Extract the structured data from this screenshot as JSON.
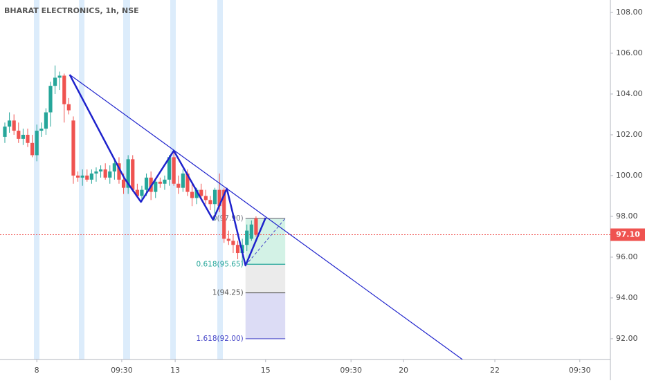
{
  "chart_data": {
    "type": "candlestick",
    "title": "BHARAT ELECTRONICS, 1h, NSE",
    "up_color": "#26a69a",
    "down_color": "#ef5350",
    "x": [
      0,
      1,
      2,
      3,
      4,
      5,
      6,
      7,
      8,
      9,
      10,
      11,
      12,
      13,
      14,
      15,
      16,
      17,
      18,
      19,
      20,
      21,
      22,
      23,
      24,
      25,
      26,
      27,
      28,
      29,
      30,
      31,
      32,
      33,
      34,
      35,
      36,
      37,
      38,
      39,
      40,
      41,
      42,
      43,
      44,
      45,
      46,
      47,
      48,
      49,
      50,
      51,
      52,
      53,
      54,
      55
    ],
    "open": [
      101.9,
      102.4,
      102.7,
      102.2,
      101.8,
      102.0,
      101.6,
      101.0,
      102.2,
      102.3,
      103.1,
      104.4,
      104.8,
      104.9,
      103.5,
      102.7,
      100.0,
      99.9,
      100.0,
      99.8,
      100.1,
      100.2,
      100.3,
      99.9,
      100.2,
      100.6,
      99.8,
      99.4,
      100.8,
      99.3,
      99.0,
      99.3,
      99.9,
      99.2,
      99.7,
      99.6,
      99.8,
      100.9,
      99.6,
      99.4,
      100.1,
      99.2,
      98.9,
      99.3,
      99.0,
      98.8,
      98.6,
      99.3,
      99.3,
      96.9,
      96.8,
      96.6,
      96.2,
      96.6,
      96.9,
      97.9
    ],
    "high": [
      102.6,
      103.1,
      103.0,
      102.6,
      102.3,
      102.3,
      102.0,
      102.5,
      102.6,
      103.3,
      104.6,
      105.4,
      105.1,
      105.0,
      103.8,
      102.9,
      100.2,
      100.3,
      100.3,
      100.3,
      100.4,
      100.5,
      100.6,
      100.5,
      100.8,
      100.9,
      100.1,
      101.0,
      101.0,
      99.6,
      99.5,
      100.1,
      100.2,
      99.8,
      99.9,
      100.0,
      101.0,
      101.2,
      100.0,
      100.3,
      100.3,
      99.7,
      99.4,
      99.6,
      99.3,
      99.0,
      99.4,
      100.1,
      99.4,
      97.3,
      97.1,
      96.8,
      96.9,
      97.6,
      97.8,
      98.0
    ],
    "low": [
      101.6,
      102.1,
      102.0,
      101.6,
      101.5,
      101.4,
      100.9,
      100.7,
      101.9,
      102.0,
      102.4,
      104.0,
      104.2,
      102.6,
      103.0,
      99.6,
      99.7,
      99.5,
      99.7,
      99.6,
      99.7,
      99.9,
      99.8,
      99.6,
      99.8,
      99.6,
      99.1,
      99.1,
      99.2,
      98.9,
      98.7,
      99.0,
      98.8,
      98.9,
      99.4,
      99.3,
      99.5,
      99.5,
      99.1,
      99.2,
      99.0,
      98.5,
      98.6,
      98.9,
      98.6,
      98.3,
      97.8,
      98.2,
      96.7,
      96.6,
      96.2,
      95.9,
      95.6,
      96.3,
      96.8,
      97.0
    ],
    "close": [
      102.4,
      102.7,
      102.2,
      101.8,
      102.0,
      101.6,
      101.0,
      102.2,
      102.3,
      103.1,
      104.4,
      104.8,
      104.9,
      103.5,
      103.2,
      100.0,
      99.9,
      100.0,
      99.8,
      100.1,
      100.2,
      100.3,
      99.9,
      100.2,
      100.6,
      99.8,
      99.4,
      100.8,
      99.3,
      99.0,
      99.3,
      99.9,
      99.2,
      99.7,
      99.6,
      99.8,
      100.9,
      99.6,
      99.4,
      100.1,
      99.2,
      98.9,
      99.3,
      99.0,
      98.8,
      98.6,
      99.3,
      98.5,
      96.9,
      96.8,
      96.6,
      96.2,
      96.6,
      97.3,
      97.6,
      97.1
    ],
    "xlim": [
      -1.06,
      132.6
    ],
    "ylim": [
      90.98,
      108.61
    ],
    "xticks": [
      {
        "value": 7,
        "label": "8"
      },
      {
        "value": 25.6,
        "label": "09:30"
      },
      {
        "value": 37.3,
        "label": "13"
      },
      {
        "value": 57.1,
        "label": "15"
      },
      {
        "value": 75.8,
        "label": "09:30"
      },
      {
        "value": 87.3,
        "label": "20"
      },
      {
        "value": 107.3,
        "label": "22"
      },
      {
        "value": 125.9,
        "label": "09:30"
      }
    ],
    "yticks": [
      {
        "value": 92,
        "label": "92.00"
      },
      {
        "value": 94,
        "label": "94.00"
      },
      {
        "value": 96,
        "label": "96.00"
      },
      {
        "value": 98,
        "label": "98.00"
      },
      {
        "value": 100,
        "label": "100.00"
      },
      {
        "value": 102,
        "label": "102.00"
      },
      {
        "value": 104,
        "label": "104.00"
      },
      {
        "value": 106,
        "label": "106.00"
      },
      {
        "value": 108,
        "label": "108.00"
      }
    ],
    "last_price": {
      "value": 97.1,
      "label": "97.10",
      "color": "#ef5350"
    },
    "trendline": {
      "x": [
        14.2,
        100.2
      ],
      "y": [
        104.95,
        90.98
      ],
      "color": "#1e22cc"
    },
    "zigzag": {
      "x": [
        14.2,
        26.2,
        29.8,
        37.0,
        45.6,
        48.6,
        52.7,
        57.1
      ],
      "y": [
        104.95,
        99.86,
        98.71,
        101.22,
        97.83,
        99.36,
        95.59,
        97.93
      ],
      "color": "#1e22cc"
    },
    "fib": {
      "x": [
        52.7,
        61.4
      ],
      "levels": [
        {
          "value": 97.9,
          "label": "0(97.90)",
          "color": "#787b86",
          "fill": "#c8efe0"
        },
        {
          "value": 95.65,
          "label": "0.618(95.65)",
          "color": "#26a69a",
          "fill": "#e6e6e6"
        },
        {
          "value": 94.25,
          "label": "1(94.25)",
          "color": "#555555",
          "fill": "#d3d3f3"
        },
        {
          "value": 92.0,
          "label": "1.618(92.00)",
          "color": "#4646c8"
        }
      ]
    }
  }
}
